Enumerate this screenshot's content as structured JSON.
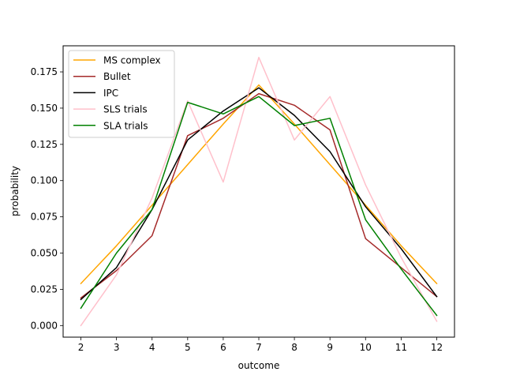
{
  "chart_data": {
    "type": "line",
    "xlabel": "outcome",
    "ylabel": "probability",
    "x": [
      2,
      3,
      4,
      5,
      6,
      7,
      8,
      9,
      10,
      11,
      12
    ],
    "xticks": [
      "2",
      "3",
      "4",
      "5",
      "6",
      "7",
      "8",
      "9",
      "10",
      "11",
      "12"
    ],
    "xlim": [
      1.5,
      12.5
    ],
    "ylim": [
      -0.008,
      0.193
    ],
    "yticks": [
      "0.000",
      "0.025",
      "0.050",
      "0.075",
      "0.100",
      "0.125",
      "0.150",
      "0.175"
    ],
    "ytick_values": [
      0,
      0.025,
      0.05,
      0.075,
      0.1,
      0.125,
      0.15,
      0.175
    ],
    "grid": false,
    "legend_position": "top-left",
    "series": [
      {
        "name": "MS complex",
        "color": "#ffa500",
        "values": [
          0.029,
          0.055,
          0.083,
          0.111,
          0.139,
          0.166,
          0.139,
          0.111,
          0.083,
          0.055,
          0.029
        ]
      },
      {
        "name": "Bullet",
        "color": "#a52a2a",
        "values": [
          0.019,
          0.038,
          0.062,
          0.131,
          0.143,
          0.16,
          0.152,
          0.135,
          0.06,
          0.04,
          0.02
        ]
      },
      {
        "name": "IPC",
        "color": "#000000",
        "values": [
          0.018,
          0.04,
          0.08,
          0.128,
          0.148,
          0.164,
          0.145,
          0.12,
          0.082,
          0.053,
          0.02
        ]
      },
      {
        "name": "SLS trials",
        "color": "#ffc0cb",
        "values": [
          0.0,
          0.035,
          0.088,
          0.155,
          0.099,
          0.185,
          0.128,
          0.158,
          0.097,
          0.047,
          0.003
        ]
      },
      {
        "name": "SLA trials",
        "color": "#008000",
        "values": [
          0.012,
          0.05,
          0.08,
          0.154,
          0.146,
          0.158,
          0.138,
          0.143,
          0.073,
          0.039,
          0.007
        ]
      }
    ]
  }
}
